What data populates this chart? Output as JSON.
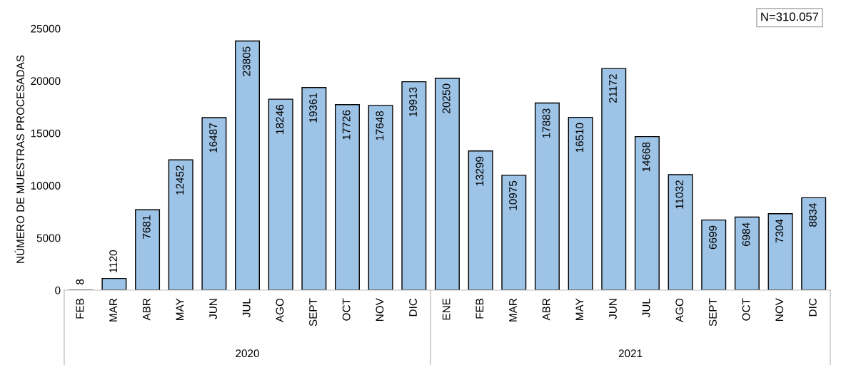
{
  "chart_data": {
    "type": "bar",
    "ylabel": "NÚMERO DE MUESTRAS PROCESADAS",
    "categories": [
      "FEB",
      "MAR",
      "ABR",
      "MAY",
      "JUN",
      "JUL",
      "AGO",
      "SEPT",
      "OCT",
      "NOV",
      "DIC",
      "ENE",
      "FEB",
      "MAR",
      "ABR",
      "MAY",
      "JUN",
      "JUL",
      "AGO",
      "SEPT",
      "OCT",
      "NOV",
      "DIC"
    ],
    "values": [
      8,
      1120,
      7681,
      12452,
      16487,
      23805,
      18246,
      19361,
      17726,
      17648,
      19913,
      20250,
      13299,
      10975,
      17883,
      16510,
      21172,
      14668,
      11032,
      6699,
      6984,
      7304,
      8834
    ],
    "color": "#9dc3e6",
    "data_labels": true,
    "ylim": [
      0,
      25000
    ],
    "yticks": [
      0,
      5000,
      10000,
      15000,
      20000,
      25000
    ],
    "grid": false,
    "annotations": [
      "N=310.057",
      "2020",
      "2021"
    ]
  }
}
